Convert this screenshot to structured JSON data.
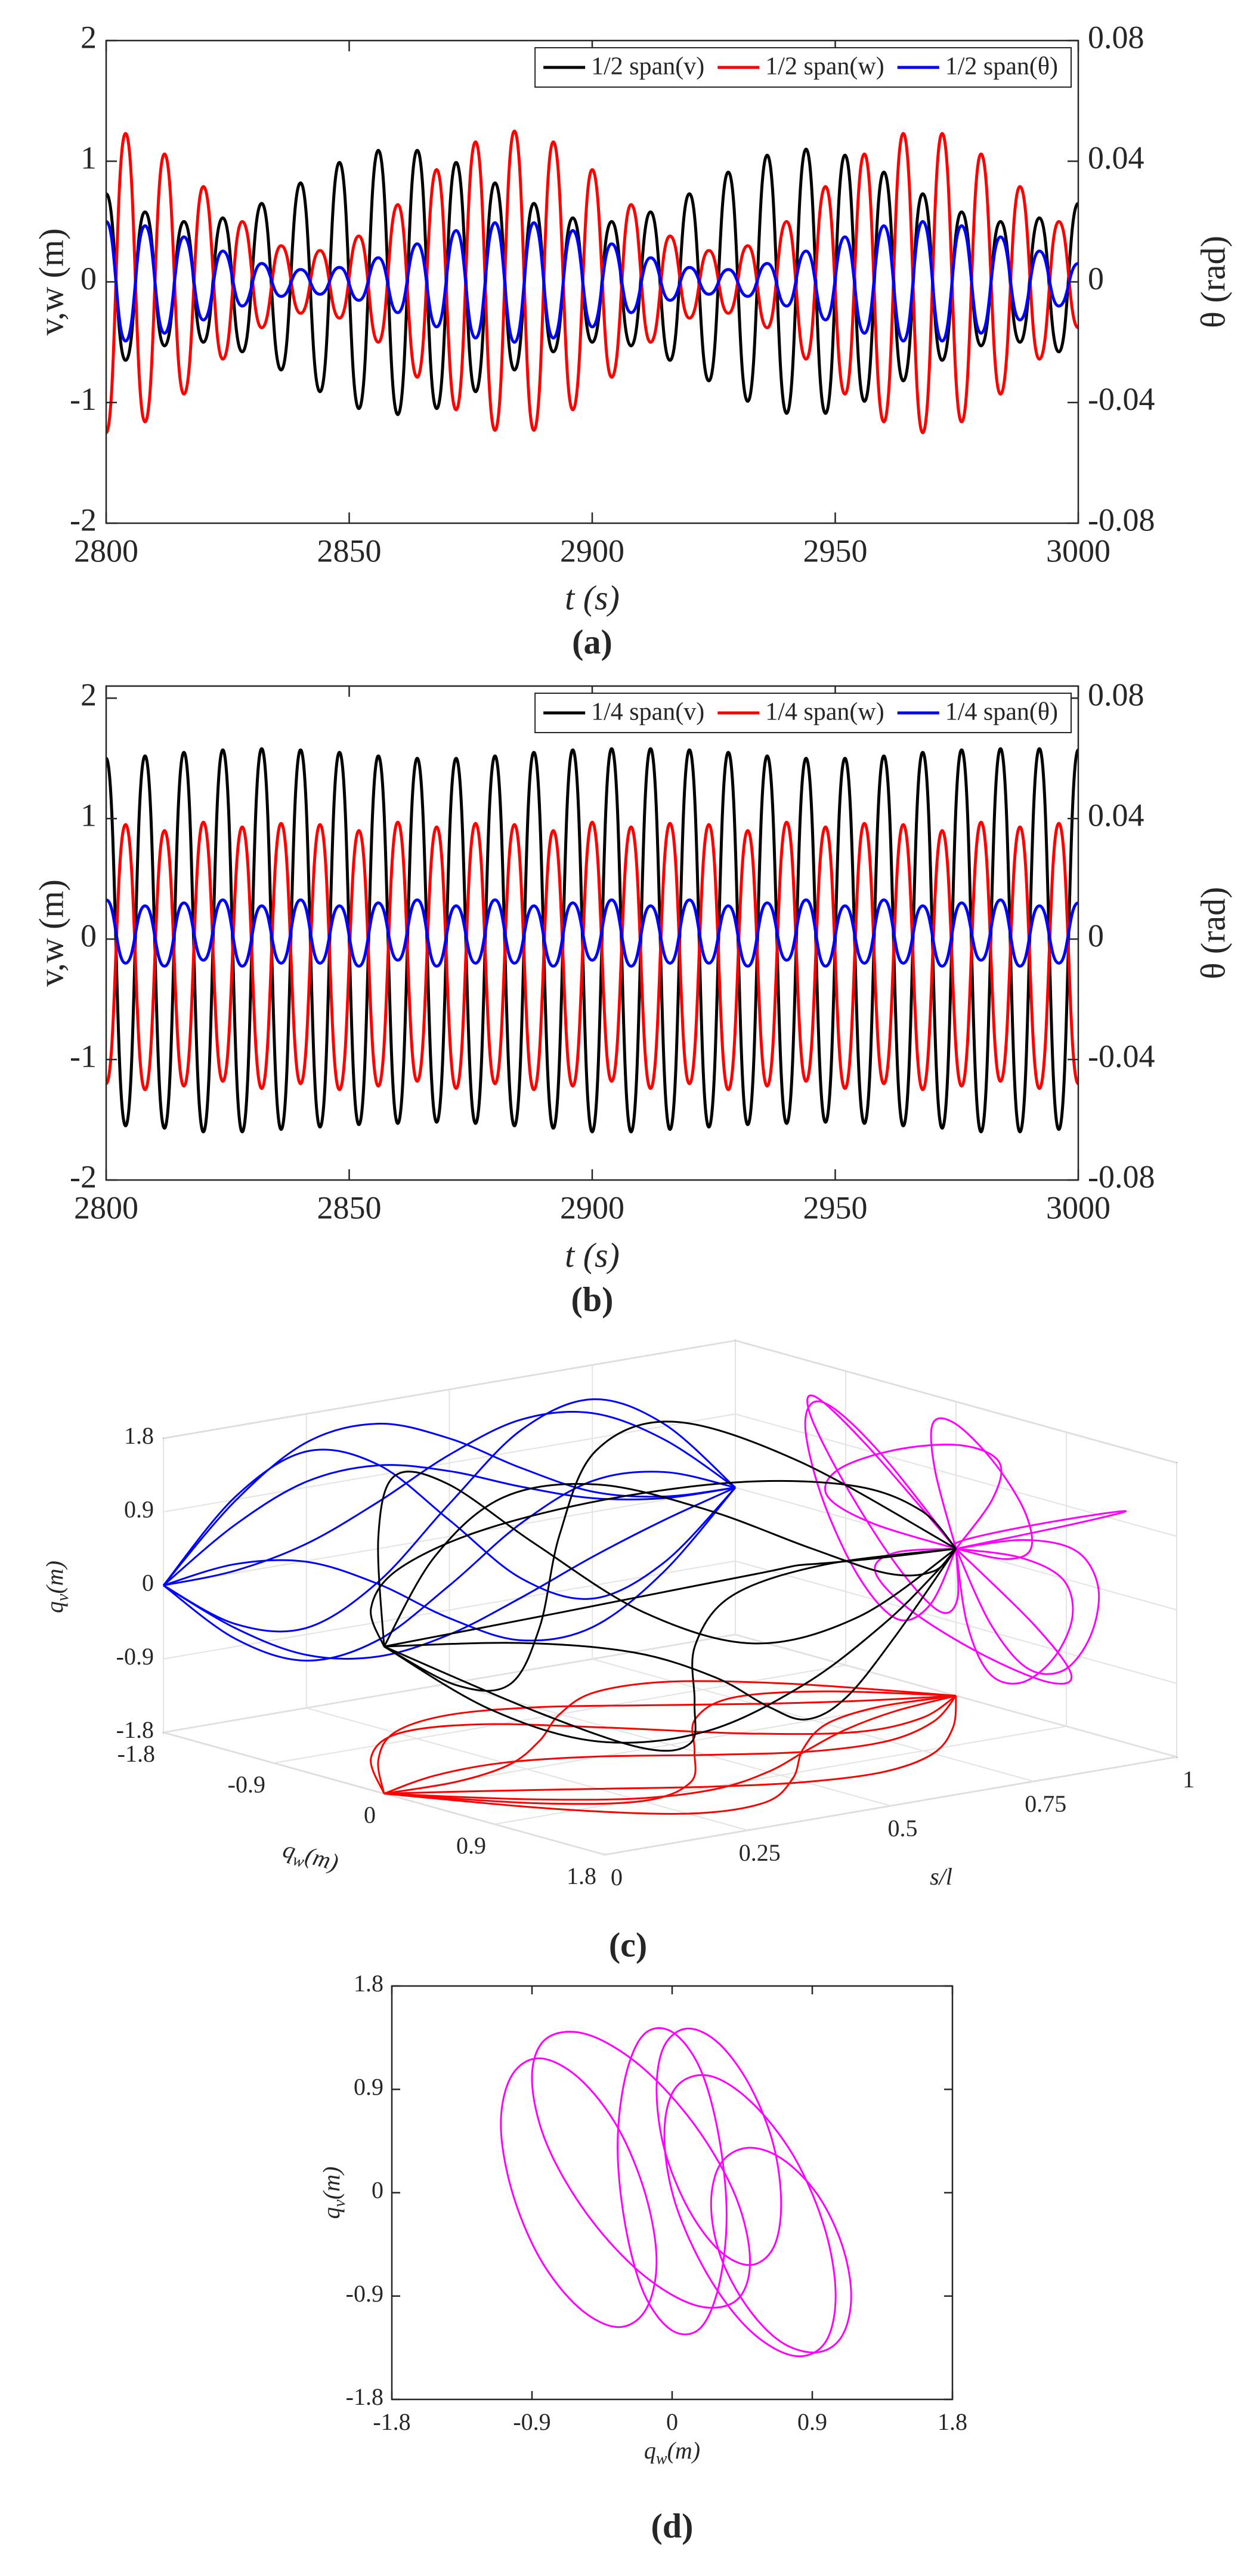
{
  "chart_data": [
    {
      "type": "line",
      "label": "(a)",
      "xlabel": "t (s)",
      "ylabel": "v,w (m)",
      "y2label": "θ (rad)",
      "xlim": [
        2800,
        3000
      ],
      "xticks": [
        2800,
        2850,
        2900,
        2950,
        3000
      ],
      "ylim": [
        -2,
        2
      ],
      "yticks": [
        -2,
        -1,
        0,
        1,
        2
      ],
      "y2lim": [
        -0.08,
        0.08
      ],
      "y2ticks": [
        -0.08,
        -0.04,
        0,
        0.04,
        0.08
      ],
      "legend": "upper right",
      "x": [
        2800,
        2804,
        2808,
        2812,
        2816,
        2820,
        2824,
        2828,
        2832,
        2836,
        2840,
        2844,
        2848,
        2852,
        2856,
        2860,
        2864,
        2868,
        2872,
        2876,
        2880,
        2884,
        2888,
        2892,
        2896,
        2900,
        2904,
        2908,
        2912,
        2916,
        2920,
        2924,
        2928,
        2932,
        2936,
        2940,
        2944,
        2948,
        2952,
        2956,
        2960,
        2964,
        2968,
        2972,
        2976,
        2980,
        2984,
        2988,
        2992,
        2996,
        3000
      ],
      "series": [
        {
          "name": "1/2 span(v)",
          "color": "#000000",
          "values": [
            0.73,
            -0.65,
            0.58,
            -0.53,
            0.5,
            -0.5,
            0.53,
            -0.58,
            0.65,
            -0.73,
            0.82,
            -0.91,
            0.99,
            -1.05,
            1.09,
            -1.1,
            1.09,
            -1.05,
            0.99,
            -0.91,
            0.82,
            -0.73,
            0.65,
            -0.58,
            0.53,
            -0.5,
            0.5,
            -0.53,
            0.58,
            -0.65,
            0.73,
            -0.82,
            0.91,
            -0.99,
            1.05,
            -1.09,
            1.1,
            -1.09,
            1.05,
            -0.99,
            0.91,
            -0.82,
            0.73,
            -0.65,
            0.58,
            -0.53,
            0.5,
            -0.5,
            0.53,
            -0.58,
            0.65
          ]
        },
        {
          "name": "1/2 span(w)",
          "color": "#ff0000",
          "values": [
            -1.25,
            1.23,
            -1.16,
            1.06,
            -0.93,
            0.79,
            -0.64,
            0.5,
            -0.38,
            0.3,
            -0.26,
            0.26,
            -0.3,
            0.38,
            -0.5,
            0.64,
            -0.79,
            0.93,
            -1.06,
            1.16,
            -1.23,
            1.25,
            -1.23,
            1.16,
            -1.06,
            0.93,
            -0.79,
            0.64,
            -0.5,
            0.38,
            -0.3,
            0.26,
            -0.26,
            0.3,
            -0.38,
            0.5,
            -0.64,
            0.79,
            -0.93,
            1.06,
            -1.16,
            1.23,
            -1.25,
            1.23,
            -1.16,
            1.06,
            -0.93,
            0.79,
            -0.64,
            0.5,
            -0.38
          ]
        },
        {
          "name": "1/2 span(θ)",
          "color": "#0000ff",
          "axis": "y2",
          "values": [
            0.02,
            -0.0196,
            0.0186,
            -0.017,
            0.0149,
            -0.0126,
            0.0102,
            -0.008,
            0.0061,
            -0.0048,
            0.0041,
            -0.0041,
            0.0048,
            -0.0061,
            0.008,
            -0.0102,
            0.0126,
            -0.0149,
            0.017,
            -0.0186,
            0.0196,
            -0.02,
            0.0196,
            -0.0186,
            0.017,
            -0.0149,
            0.0126,
            -0.0102,
            0.008,
            -0.0061,
            0.0048,
            -0.0041,
            0.0041,
            -0.0048,
            0.0061,
            -0.008,
            0.0102,
            -0.0126,
            0.0149,
            -0.017,
            0.0186,
            -0.0196,
            0.02,
            -0.0196,
            0.0186,
            -0.017,
            0.0149,
            -0.0126,
            0.0102,
            -0.008,
            0.0061
          ]
        }
      ]
    },
    {
      "type": "line",
      "label": "(b)",
      "xlabel": "t (s)",
      "ylabel": "v,w (m)",
      "y2label": "θ (rad)",
      "xlim": [
        2800,
        3000
      ],
      "xticks": [
        2800,
        2850,
        2900,
        2950,
        3000
      ],
      "ylim": [
        -2,
        2.1
      ],
      "yticks": [
        -2,
        -1,
        0,
        1,
        2
      ],
      "y2lim": [
        -0.08,
        0.084
      ],
      "y2ticks": [
        -0.08,
        -0.04,
        0,
        0.04,
        0.08
      ],
      "legend": "upper right",
      "x": [
        2800,
        2804,
        2808,
        2812,
        2816,
        2820,
        2824,
        2828,
        2832,
        2836,
        2840,
        2844,
        2848,
        2852,
        2856,
        2860,
        2864,
        2868,
        2872,
        2876,
        2880,
        2884,
        2888,
        2892,
        2896,
        2900,
        2904,
        2908,
        2912,
        2916,
        2920,
        2924,
        2928,
        2932,
        2936,
        2940,
        2944,
        2948,
        2952,
        2956,
        2960,
        2964,
        2968,
        2972,
        2976,
        2980,
        2984,
        2988,
        2992,
        2996,
        3000
      ],
      "series": [
        {
          "name": "1/4 span(v)",
          "color": "#000000",
          "values": [
            1.5,
            -1.55,
            1.52,
            -1.57,
            1.55,
            -1.6,
            1.57,
            -1.6,
            1.58,
            -1.58,
            1.57,
            -1.56,
            1.55,
            -1.54,
            1.52,
            -1.53,
            1.5,
            -1.52,
            1.5,
            -1.53,
            1.52,
            -1.55,
            1.55,
            -1.57,
            1.57,
            -1.6,
            1.58,
            -1.6,
            1.58,
            -1.58,
            1.57,
            -1.56,
            1.55,
            -1.54,
            1.52,
            -1.53,
            1.5,
            -1.52,
            1.5,
            -1.53,
            1.52,
            -1.55,
            1.55,
            -1.57,
            1.57,
            -1.6,
            1.58,
            -1.6,
            1.58,
            -1.58,
            1.57
          ]
        },
        {
          "name": "1/4 span(w)",
          "color": "#ff0000",
          "values": [
            -1.2,
            0.95,
            -1.25,
            0.9,
            -1.22,
            0.97,
            -1.18,
            0.93,
            -1.24,
            0.96,
            -1.2,
            0.95,
            -1.25,
            0.9,
            -1.22,
            0.97,
            -1.18,
            0.93,
            -1.24,
            0.96,
            -1.2,
            0.95,
            -1.25,
            0.9,
            -1.22,
            0.97,
            -1.18,
            0.93,
            -1.24,
            0.96,
            -1.2,
            0.95,
            -1.25,
            0.9,
            -1.22,
            0.97,
            -1.18,
            0.93,
            -1.24,
            0.96,
            -1.2,
            0.95,
            -1.25,
            0.9,
            -1.22,
            0.97,
            -1.18,
            0.93,
            -1.24,
            0.96,
            -1.2
          ]
        },
        {
          "name": "1/4 span(θ)",
          "color": "#0000ff",
          "axis": "y2",
          "values": [
            0.013,
            -0.008,
            0.011,
            -0.009,
            0.012,
            -0.007,
            0.013,
            -0.009,
            0.011,
            -0.008,
            0.013,
            -0.008,
            0.011,
            -0.009,
            0.012,
            -0.007,
            0.013,
            -0.009,
            0.011,
            -0.008,
            0.013,
            -0.008,
            0.011,
            -0.009,
            0.012,
            -0.007,
            0.013,
            -0.009,
            0.011,
            -0.008,
            0.013,
            -0.008,
            0.011,
            -0.009,
            0.012,
            -0.007,
            0.013,
            -0.009,
            0.011,
            -0.008,
            0.013,
            -0.008,
            0.011,
            -0.009,
            0.012,
            -0.007,
            0.013,
            -0.009,
            0.011,
            -0.008,
            0.012
          ]
        }
      ]
    },
    {
      "type": "line3d",
      "label": "(c)",
      "xlabel": "s/l",
      "ylabel": [
        "q",
        "w",
        "(m)"
      ],
      "zlabel": [
        "q",
        "v",
        "(m)"
      ],
      "slim": [
        0,
        1
      ],
      "sticks": [
        0,
        0.25,
        0.5,
        0.75,
        1
      ],
      "wlim": [
        -1.8,
        1.8
      ],
      "wticks": [
        -1.8,
        -0.9,
        0,
        0.9,
        1.8
      ],
      "vlim": [
        -1.8,
        1.8
      ],
      "vticks": [
        -1.8,
        -0.9,
        0,
        0.9,
        1.8
      ],
      "grid": true,
      "colors": {
        "curve": "#000000",
        "v_projection": "#0000ff",
        "w_projection": "#ff0000",
        "section_projection": "#ff00ff"
      },
      "s": [
        0,
        0.125,
        0.25,
        0.375,
        0.5,
        0.625,
        0.75,
        0.875,
        1
      ],
      "snapshots": [
        {
          "qv": [
            0,
            0.88,
            1.45,
            1.53,
            1.2,
            0.69,
            0.25,
            0.04,
            0
          ],
          "qw": [
            0,
            -0.17,
            -0.19,
            -0.01,
            0.3,
            0.56,
            0.61,
            0.4,
            0
          ]
        },
        {
          "qv": [
            0,
            0.11,
            -0.01,
            -0.43,
            -1,
            -1.42,
            -1.41,
            -0.88,
            0
          ],
          "qw": [
            0,
            0.52,
            0.87,
            0.95,
            0.8,
            0.53,
            0.27,
            0.09,
            0
          ]
        },
        {
          "qv": [
            0,
            -0.62,
            -0.82,
            -0.41,
            0.4,
            1.15,
            1.38,
            0.93,
            0
          ],
          "qw": [
            0,
            0.01,
            -0.14,
            -0.48,
            -0.9,
            -1.19,
            -1.14,
            -0.7,
            0
          ]
        },
        {
          "qv": [
            0,
            -0.8,
            -1.22,
            -1.12,
            -0.6,
            0.01,
            0.38,
            0.34,
            0
          ],
          "qw": [
            0,
            0.28,
            0.58,
            0.88,
            1.1,
            1.16,
            0.98,
            0.56,
            0
          ]
        },
        {
          "qv": [
            0,
            0.03,
            0.21,
            0.57,
            1,
            1.28,
            1.21,
            0.74,
            0
          ],
          "qw": [
            0,
            -0.69,
            -1.05,
            -0.96,
            -0.5,
            0.03,
            0.35,
            0.3,
            0
          ]
        },
        {
          "qv": [
            0,
            -0.67,
            -1.15,
            -1.32,
            -1.2,
            -0.9,
            -0.55,
            -0.25,
            0
          ],
          "qw": [
            0,
            0.64,
            0.94,
            0.75,
            0.2,
            -0.38,
            -0.66,
            -0.49,
            0
          ]
        },
        {
          "qv": [
            0,
            0.93,
            1.34,
            1.03,
            0.2,
            -0.66,
            -1.06,
            -0.77,
            0
          ],
          "qw": [
            0,
            -0.63,
            -1.08,
            -1.23,
            -1.1,
            -0.8,
            -0.48,
            -0.21,
            0
          ]
        },
        {
          "qv": [
            0,
            0.59,
            0.97,
            1.02,
            0.8,
            0.46,
            0.17,
            0.02,
            0
          ],
          "qw": [
            0,
            0.81,
            1.31,
            1.35,
            1,
            0.5,
            0.11,
            -0.04,
            0
          ]
        }
      ]
    },
    {
      "type": "loops",
      "label": "(d)",
      "xlabel": [
        "q",
        "w",
        "(m)"
      ],
      "ylabel": [
        "q",
        "v",
        "(m)"
      ],
      "xlim": [
        -1.8,
        1.8
      ],
      "xticks": [
        -1.8,
        -0.9,
        0,
        0.9,
        1.8
      ],
      "ylim": [
        -1.8,
        1.8
      ],
      "yticks": [
        -1.8,
        -0.9,
        0,
        0.9,
        1.8
      ],
      "color": "#ff00ff",
      "loops": [
        {
          "qw": [
            -0.1,
            -0.17,
            -0.35,
            -0.6,
            -0.85,
            -1.03,
            -1.1,
            -1.03,
            -0.85,
            -0.6,
            -0.35,
            -0.17
          ],
          "qv": [
            -0.6,
            -0.02,
            0.57,
            1,
            1.17,
            1.02,
            0.6,
            0.02,
            -0.57,
            -1,
            -1.17,
            -1.02
          ]
        },
        {
          "qw": [
            1.05,
            0.98,
            0.78,
            0.5,
            0.23,
            0.02,
            -0.05,
            0.02,
            0.23,
            0.5,
            0.78,
            0.98
          ],
          "qv": [
            -0.9,
            -0.31,
            0.32,
            0.8,
            1.02,
            0.91,
            0.5,
            -0.09,
            -0.72,
            -1.2,
            -1.42,
            -1.31
          ]
        },
        {
          "qw": [
            0.35,
            0.3,
            0.18,
            0,
            -0.18,
            -0.3,
            -0.35,
            -0.3,
            -0.18,
            0,
            0.18,
            0.3
          ],
          "qv": [
            -0.2,
            0.49,
            1.08,
            1.4,
            1.38,
            1.01,
            0.4,
            -0.29,
            -0.88,
            -1.2,
            -1.18,
            -0.81
          ]
        },
        {
          "qw": [
            0.5,
            0.41,
            0.15,
            -0.2,
            -0.55,
            -0.81,
            -0.9,
            -0.81,
            -0.55,
            -0.2,
            0.15,
            0.41
          ],
          "qv": [
            -0.6,
            -0.04,
            0.58,
            1.1,
            1.38,
            1.34,
            1,
            0.44,
            -0.18,
            -0.7,
            -0.98,
            -0.94
          ]
        },
        {
          "qw": [
            0.7,
            0.65,
            0.5,
            0.3,
            0.1,
            -0.05,
            -0.1,
            -0.05,
            0.1,
            0.3,
            0.5,
            0.65
          ],
          "qv": [
            -0.1,
            0.42,
            0.93,
            1.3,
            1.43,
            1.28,
            0.9,
            0.38,
            -0.13,
            -0.5,
            -0.63,
            -0.48
          ]
        },
        {
          "qw": [
            1.15,
            1.09,
            0.93,
            0.7,
            0.48,
            0.31,
            0.25,
            0.31,
            0.48,
            0.7,
            0.93,
            1.09
          ],
          "qv": [
            -0.9,
            -0.45,
            -0.01,
            0.3,
            0.39,
            0.25,
            -0.1,
            -0.55,
            -0.99,
            -1.3,
            -1.39,
            -1.25
          ]
        }
      ]
    }
  ]
}
